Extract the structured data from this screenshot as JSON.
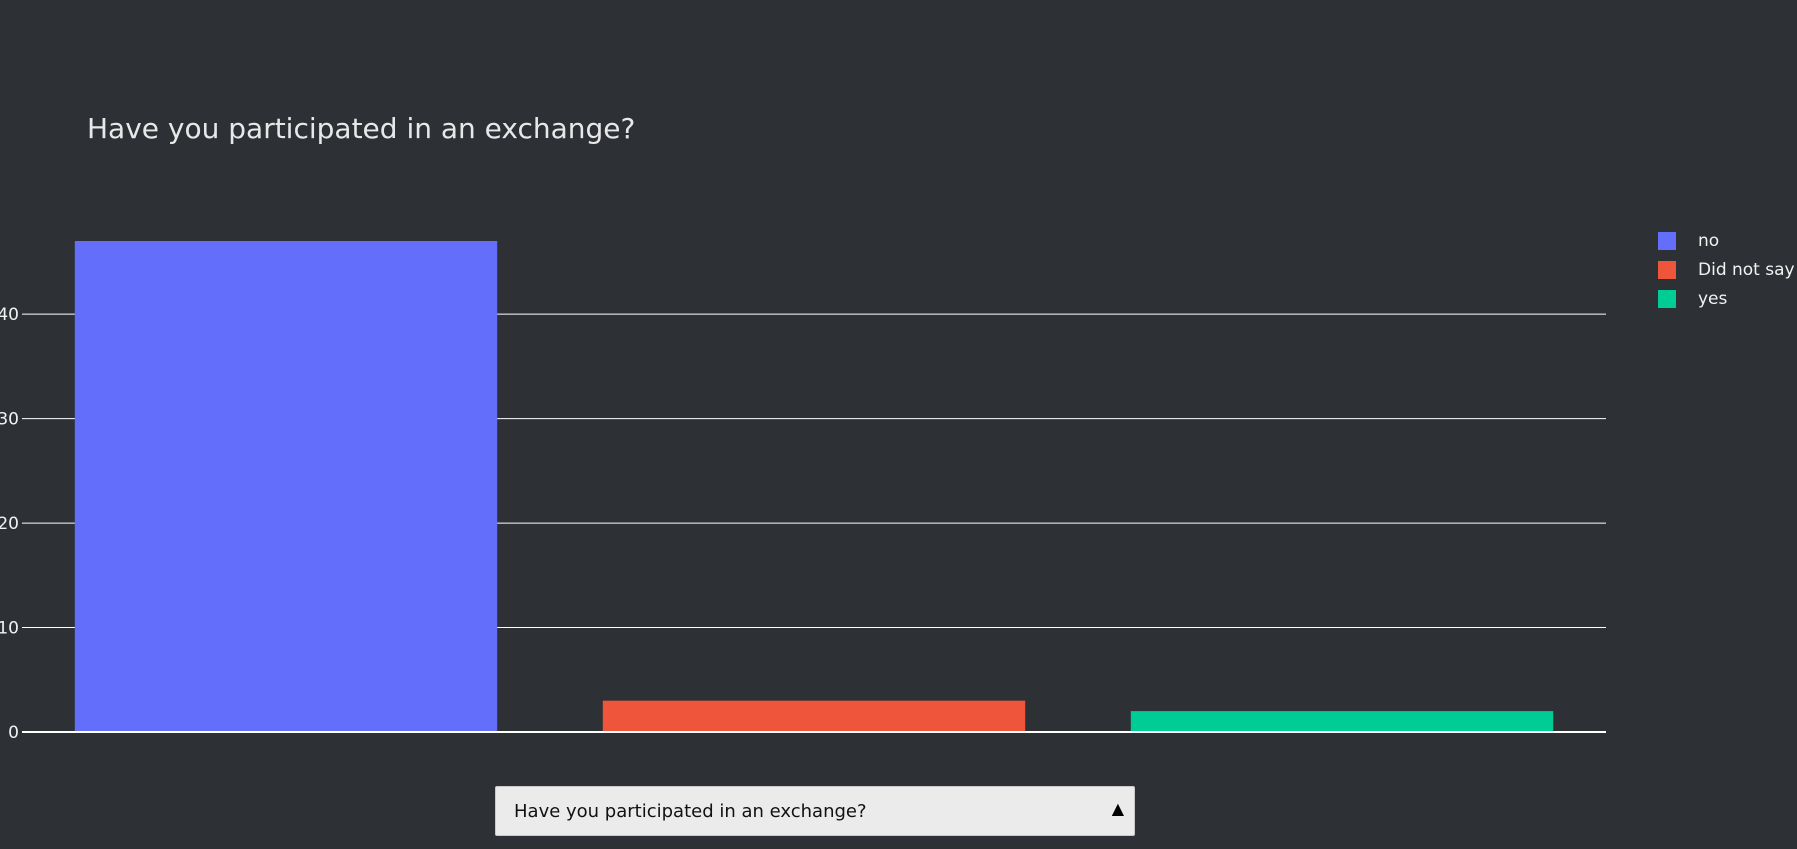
{
  "chart_data": {
    "type": "bar",
    "title": "Have you participated in an exchange?",
    "xlabel": "",
    "ylabel": "",
    "categories": [
      "no",
      "Did not say",
      "yes"
    ],
    "values": [
      47,
      3,
      2
    ],
    "colors": [
      "#636efa",
      "#ef553b",
      "#00cc96"
    ],
    "ylim": [
      0,
      47
    ],
    "yticks": [
      0,
      10,
      20,
      30,
      40
    ],
    "grid": true,
    "legend": "right"
  },
  "legend": {
    "items": [
      {
        "label": "no",
        "color": "#636efa"
      },
      {
        "label": "Did not say",
        "color": "#ef553b"
      },
      {
        "label": "yes",
        "color": "#00cc96"
      }
    ]
  },
  "dropdown": {
    "value": "Have you participated in an exchange?",
    "arrow_icon": "triangle-up-icon"
  },
  "colors": {
    "background": "#2d3035",
    "grid": "#ffffff",
    "text": "#f2f2f2"
  }
}
